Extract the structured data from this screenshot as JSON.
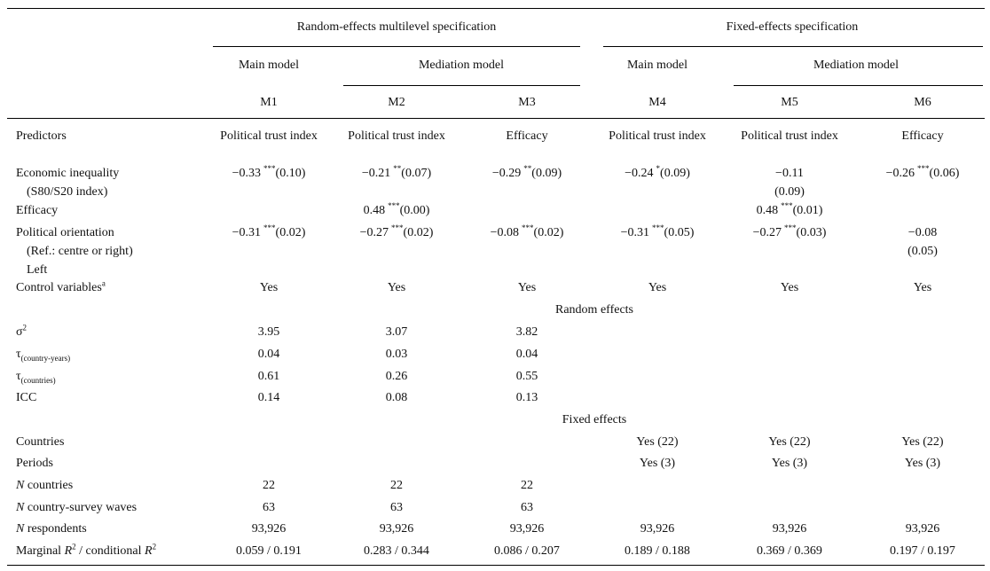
{
  "header": {
    "groups": [
      "Random-effects multilevel specification",
      "Fixed-effects specification"
    ],
    "subgroups": [
      "Main model",
      "Mediation model",
      "Main model",
      "Mediation model"
    ],
    "models": [
      "M1",
      "M2",
      "M3",
      "M4",
      "M5",
      "M6"
    ]
  },
  "rows": [
    {
      "label": [
        "Predictors"
      ],
      "cells": [
        "Political trust index",
        "Political trust index",
        "Efficacy",
        "Political trust index",
        "Political trust index",
        "Efficacy"
      ]
    },
    {
      "label": [
        "Economic inequality",
        "(S80/S20 index)"
      ],
      "cells": [
        {
          "coef": "−0.33",
          "stars": "***",
          "se": "(0.10)"
        },
        {
          "coef": "−0.21",
          "stars": "**",
          "se": "(0.07)"
        },
        {
          "coef": "−0.29",
          "stars": "**",
          "se": "(0.09)"
        },
        {
          "coef": "−0.24",
          "stars": "*",
          "se": "(0.09)"
        },
        {
          "coef": "−0.11",
          "se": "(0.09)"
        },
        {
          "coef": "−0.26",
          "stars": "***",
          "se": "(0.06)"
        }
      ]
    },
    {
      "label": [
        "Efficacy"
      ],
      "cells": [
        null,
        {
          "coef": "0.48",
          "stars": "***",
          "se": "(0.00)"
        },
        null,
        null,
        {
          "coef": "0.48",
          "stars": "***",
          "se": "(0.01)"
        },
        null
      ]
    },
    {
      "label": [
        "Political orientation",
        "(Ref.: centre or right)",
        "Left"
      ],
      "cells": [
        {
          "coef": "−0.31",
          "stars": "***",
          "se": "(0.02)"
        },
        {
          "coef": "−0.27",
          "stars": "***",
          "se": "(0.02)"
        },
        {
          "coef": "−0.08",
          "stars": "***",
          "se": "(0.02)"
        },
        {
          "coef": "−0.31",
          "stars": "***",
          "se": "(0.05)"
        },
        {
          "coef": "−0.27",
          "stars": "***",
          "se": "(0.03)"
        },
        {
          "coef": "−0.08",
          "se": "(0.05)"
        }
      ]
    },
    {
      "label": [
        [
          {
            "text": "Control variables"
          },
          {
            "text": "a",
            "style": "sup"
          }
        ]
      ],
      "cells": [
        "Yes",
        "Yes",
        "Yes",
        "Yes",
        "Yes",
        "Yes"
      ]
    },
    {
      "section": "Random effects"
    },
    {
      "label": [
        [
          {
            "text": "σ"
          },
          {
            "text": "2",
            "style": "sup"
          }
        ]
      ],
      "cells": [
        "3.95",
        "3.07",
        "3.82",
        null,
        null,
        null
      ]
    },
    {
      "label": [
        [
          {
            "text": "τ"
          },
          {
            "text": "(country-years)",
            "style": "sub"
          }
        ]
      ],
      "cells": [
        "0.04",
        "0.03",
        "0.04",
        null,
        null,
        null
      ]
    },
    {
      "label": [
        [
          {
            "text": "τ"
          },
          {
            "text": "(countries)",
            "style": "sub"
          }
        ]
      ],
      "cells": [
        "0.61",
        "0.26",
        "0.55",
        null,
        null,
        null
      ]
    },
    {
      "label": [
        "ICC"
      ],
      "cells": [
        "0.14",
        "0.08",
        "0.13",
        null,
        null,
        null
      ]
    },
    {
      "section": "Fixed effects"
    },
    {
      "label": [
        "Countries"
      ],
      "cells": [
        null,
        null,
        null,
        "Yes (22)",
        "Yes (22)",
        "Yes (22)"
      ]
    },
    {
      "label": [
        "Periods"
      ],
      "cells": [
        null,
        null,
        null,
        "Yes (3)",
        "Yes (3)",
        "Yes (3)"
      ]
    },
    {
      "label": [
        [
          {
            "text": "N",
            "style": "i"
          },
          {
            "text": " countries"
          }
        ]
      ],
      "cells": [
        "22",
        "22",
        "22",
        null,
        null,
        null
      ]
    },
    {
      "label": [
        [
          {
            "text": "N",
            "style": "i"
          },
          {
            "text": " country-survey waves"
          }
        ]
      ],
      "cells": [
        "63",
        "63",
        "63",
        null,
        null,
        null
      ]
    },
    {
      "label": [
        [
          {
            "text": "N",
            "style": "i"
          },
          {
            "text": " respondents"
          }
        ]
      ],
      "cells": [
        "93,926",
        "93,926",
        "93,926",
        "93,926",
        "93,926",
        "93,926"
      ]
    },
    {
      "label": [
        [
          {
            "text": "Marginal "
          },
          {
            "text": "R",
            "style": "i"
          },
          {
            "text": "2",
            "style": "sup"
          },
          {
            "text": " / conditional "
          },
          {
            "text": "R",
            "style": "i"
          },
          {
            "text": "2",
            "style": "sup"
          }
        ]
      ],
      "cells": [
        "0.059 / 0.191",
        "0.283 / 0.344",
        "0.086 / 0.207",
        "0.189 / 0.188",
        "0.369 / 0.369",
        "0.197 / 0.197"
      ]
    }
  ]
}
